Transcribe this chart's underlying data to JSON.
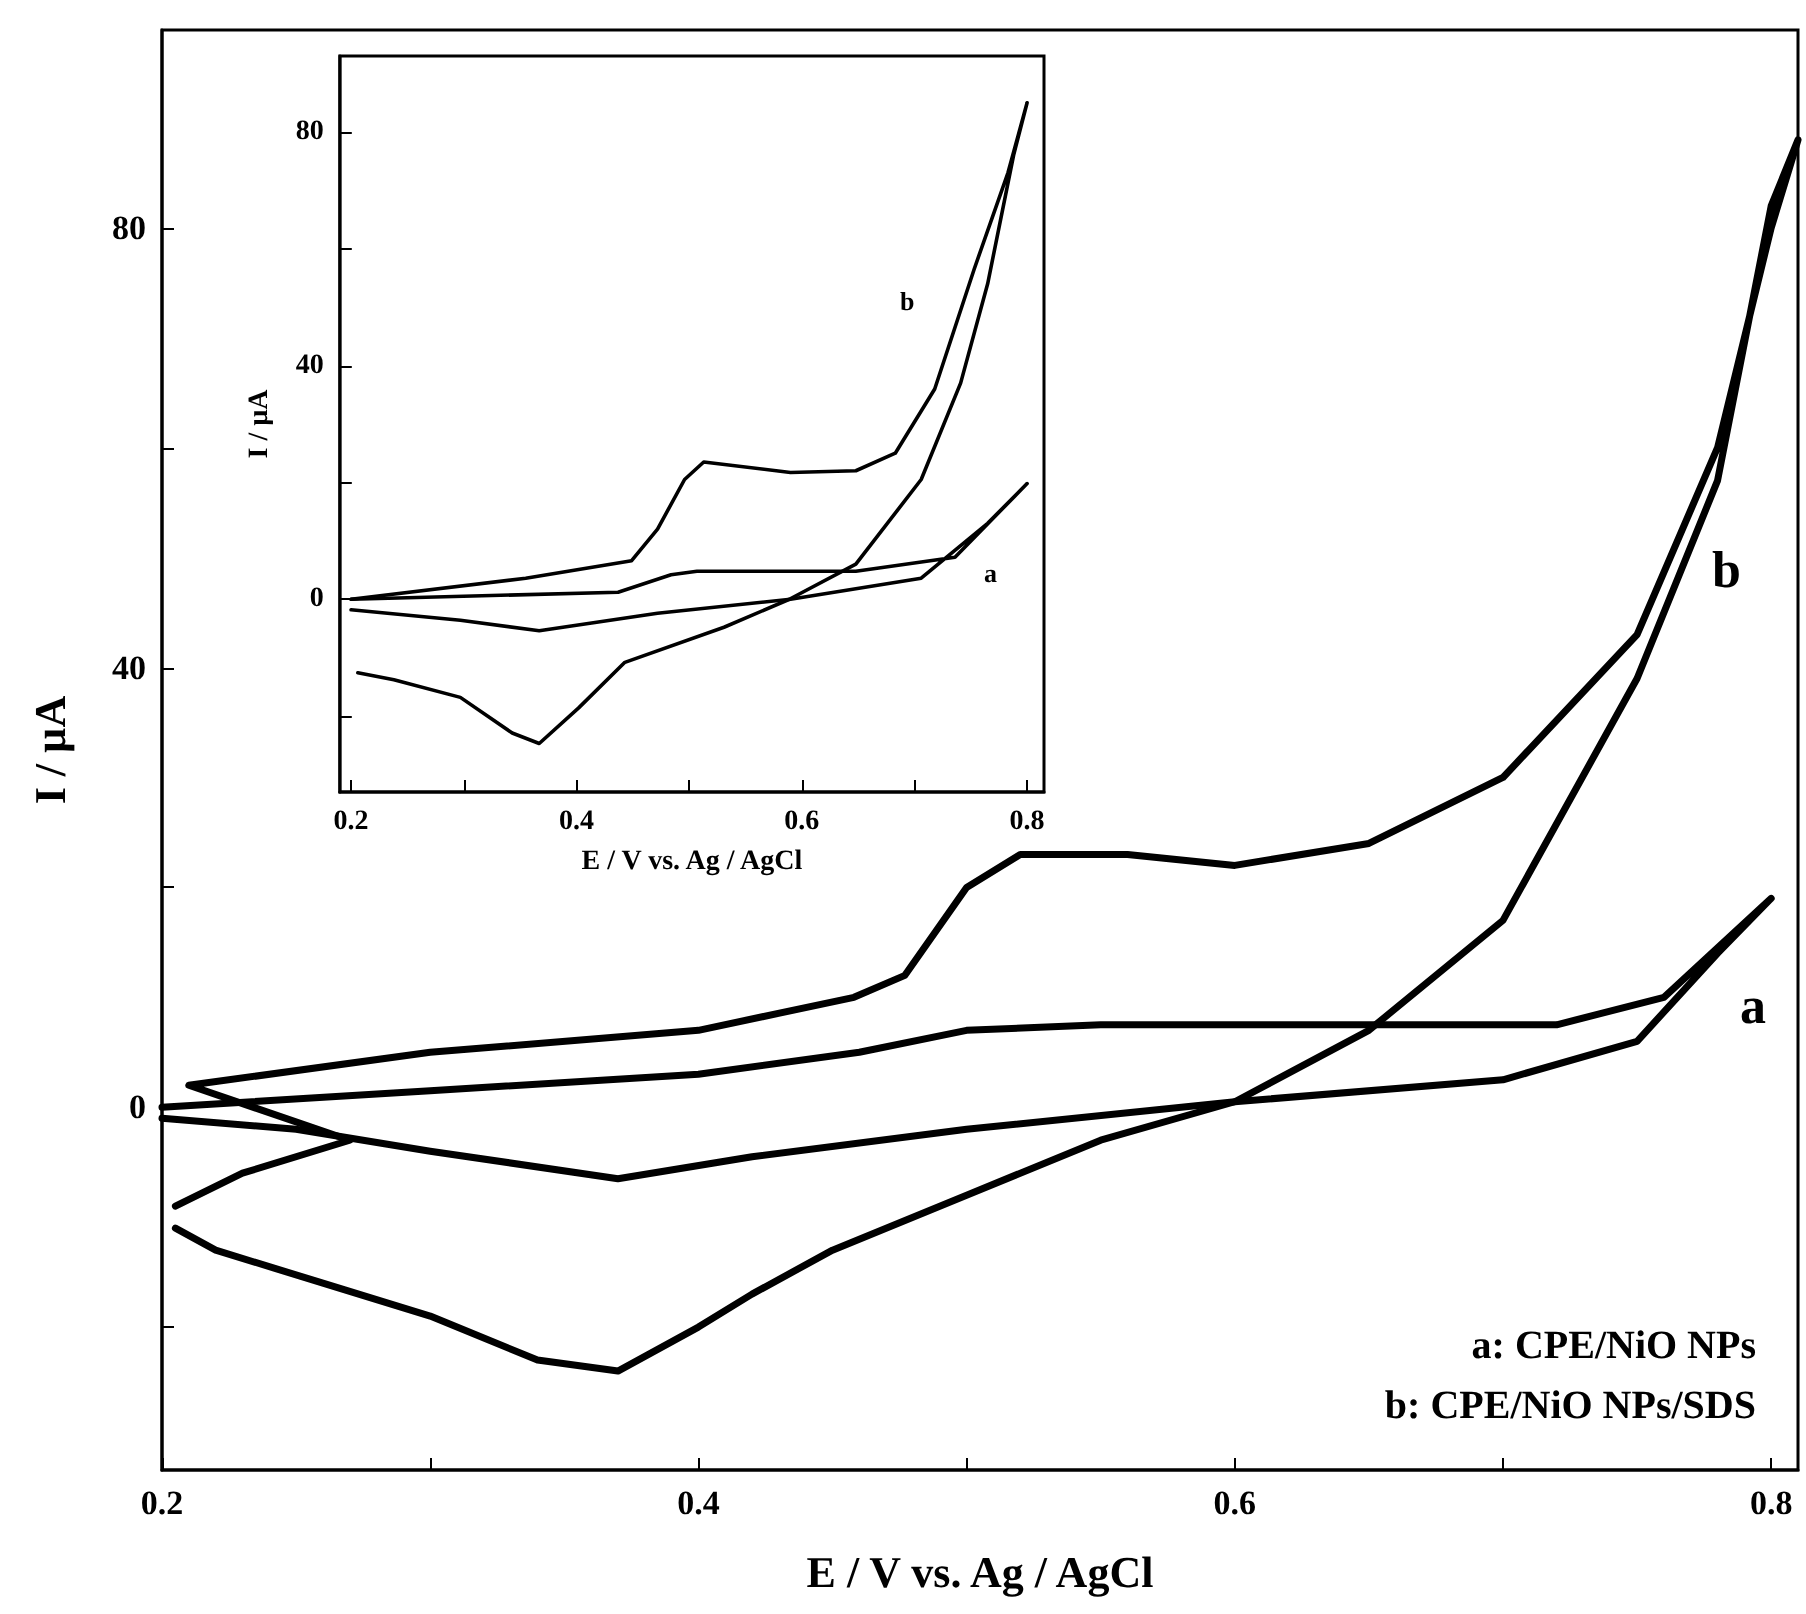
{
  "chart_data": [
    {
      "type": "line",
      "xlabel": "E / V vs. Ag / AgCl",
      "ylabel": "I / µA",
      "xlim": [
        0.2,
        0.81
      ],
      "ylim": [
        -33,
        98
      ],
      "xticks": [
        0.2,
        {
          "value": 0.3,
          "label": null
        },
        0.4,
        {
          "value": 0.5,
          "label": null
        },
        0.6,
        {
          "value": 0.7,
          "label": null
        },
        0.8
      ],
      "yticks": [
        {
          "value": -20,
          "label": null
        },
        0,
        {
          "value": 20,
          "label": null
        },
        40,
        {
          "value": 60,
          "label": null
        },
        80
      ],
      "grid": false,
      "marker": "none",
      "line_style": "solid",
      "series": [
        {
          "color": "#000000",
          "x": [
            0.2,
            0.3,
            0.4,
            0.46,
            0.5,
            0.55,
            0.65,
            0.72,
            0.76,
            0.8,
            0.78,
            0.75,
            0.7,
            0.6,
            0.5,
            0.42,
            0.37,
            0.3,
            0.25,
            0.2
          ],
          "values": [
            0,
            1.5,
            3,
            5,
            7,
            7.5,
            7.5,
            7.5,
            10,
            19,
            14,
            6,
            2.5,
            0.5,
            -2,
            -4.5,
            -6.5,
            -4,
            -2,
            -1
          ]
        },
        {
          "color": "#000000",
          "x": [
            0.205,
            0.23,
            0.27,
            0.21,
            0.3,
            0.4,
            0.458,
            0.477,
            0.5,
            0.52,
            0.56,
            0.6,
            0.65,
            0.7,
            0.75,
            0.78,
            0.8,
            0.81,
            0.8,
            0.78,
            0.75,
            0.7,
            0.65,
            0.6,
            0.55,
            0.5,
            0.45,
            0.42,
            0.4,
            0.37,
            0.34,
            0.3,
            0.26,
            0.22,
            0.205
          ],
          "values": [
            -9,
            -6,
            -3,
            2,
            5,
            7,
            10,
            12,
            20,
            23,
            23,
            22,
            24,
            30,
            43,
            60,
            80,
            88,
            82,
            57,
            39,
            17,
            7,
            0.5,
            -3,
            -8,
            -13,
            -17,
            -20,
            -24,
            -23,
            -19,
            -16,
            -13,
            -11
          ]
        }
      ],
      "annotations": [
        "a",
        "b",
        "a: CPE/NiO NPs",
        "b: CPE/NiO NPs/SDS"
      ]
    },
    {
      "type": "line",
      "xlabel": "E / V vs. Ag / AgCl",
      "ylabel": "I / µA",
      "xlim": [
        0.19,
        0.815
      ],
      "ylim": [
        -33,
        93
      ],
      "xticks": [
        0.2,
        {
          "value": 0.3,
          "label": null
        },
        0.4,
        {
          "value": 0.5,
          "label": null
        },
        0.6,
        {
          "value": 0.7,
          "label": null
        },
        0.8
      ],
      "yticks": [
        {
          "value": -20,
          "label": null
        },
        0,
        {
          "value": 20,
          "label": null
        },
        40,
        {
          "value": 60,
          "label": null
        },
        80
      ],
      "grid": false,
      "marker": "none",
      "line_style": "solid",
      "series": [
        {
          "color": "#000000",
          "x": [
            0.2,
            0.437,
            0.484,
            0.507,
            0.648,
            0.736,
            0.8,
            0.765,
            0.706,
            0.59,
            0.472,
            0.367,
            0.297,
            0.2
          ],
          "values": [
            0,
            1.2,
            4.2,
            4.8,
            4.8,
            7.2,
            19.8,
            13,
            3.6,
            0,
            -2.4,
            -5.4,
            -3.6,
            -1.8
          ]
        },
        {
          "color": "#000000",
          "x": [
            0.2,
            0.355,
            0.449,
            0.472,
            0.496,
            0.513,
            0.59,
            0.648,
            0.683,
            0.718,
            0.753,
            0.783,
            0.8,
            0.788,
            0.765,
            0.741,
            0.706,
            0.648,
            0.589,
            0.531,
            0.443,
            0.402,
            0.367,
            0.343,
            0.297,
            0.238,
            0.206
          ],
          "values": [
            0,
            3.6,
            6.6,
            12,
            20.5,
            23.5,
            21.7,
            22,
            25,
            36,
            56.5,
            73,
            85,
            76,
            54,
            37,
            20.5,
            6,
            0,
            -4.8,
            -10.8,
            -18.6,
            -24.7,
            -22.9,
            -16.8,
            -13.8,
            -12.6
          ]
        }
      ],
      "annotations": [
        "a",
        "b"
      ]
    }
  ]
}
